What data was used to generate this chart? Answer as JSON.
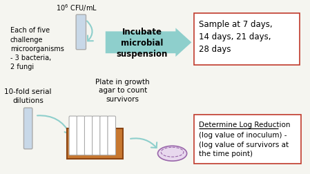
{
  "bg_color": "#f5f5f0",
  "elements": {
    "tube_top_label": "10⁶ CFU/mL",
    "left_text": "Each of five\nchallenge\nmicroorganisms\n- 3 bacteria,\n2 fungi",
    "incubate_label": "Incubate\nmicrobial\nsuspension",
    "sample_box_text": "Sample at 7 days,\n14 days, 21 days,\n28 days",
    "serial_label": "10-fold serial\ndilutions",
    "plate_label": "Plate in growth\nagar to count\nsurvivors",
    "log_box_title": "Determine Log Reduction",
    "log_box_text": "(log value of inoculum) -\n(log value of survivors at\nthe time point)",
    "arrow_color": "#8ecfcc",
    "box_border_color": "#c0392b",
    "tube_color": "#c8d8e8",
    "tube_stroke": "#aaaaaa",
    "rack_color": "#c87830",
    "rack_dark": "#8b4513",
    "petri_fill": "#e8d8ee",
    "petri_border": "#9966aa"
  }
}
